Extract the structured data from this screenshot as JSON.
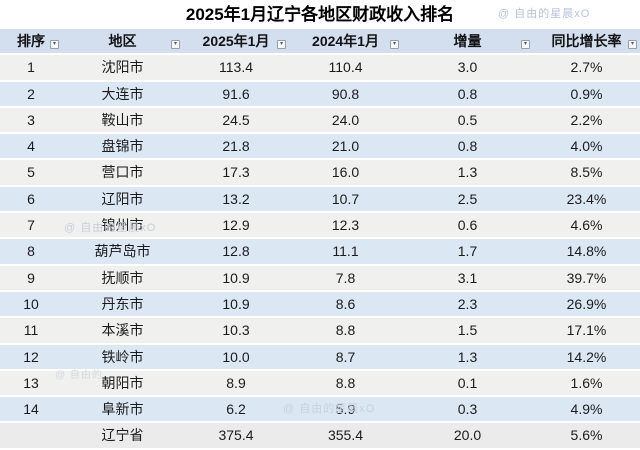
{
  "title": "2025年1月辽宁各地区财政收入排名",
  "watermarks": [
    {
      "text": "@ 自由的星晨xO",
      "location": "top-right"
    },
    {
      "text": "@ 自由的星晨xO",
      "location": "row-7-region"
    },
    {
      "text": "@ 自由的",
      "location": "row-13-left"
    },
    {
      "text": "@ 自由的星晨xO",
      "location": "row-14-center"
    }
  ],
  "table": {
    "filter_icon": "▾",
    "row_keys": [
      "rank",
      "region",
      "v2025",
      "v2024",
      "delta",
      "growth"
    ],
    "columns": [
      {
        "key": "rank",
        "label": "排序"
      },
      {
        "key": "region",
        "label": "地区"
      },
      {
        "key": "v2025",
        "label": "2025年1月"
      },
      {
        "key": "v2024",
        "label": "2024年1月"
      },
      {
        "key": "delta",
        "label": "增量"
      },
      {
        "key": "growth",
        "label": "同比增长率"
      }
    ],
    "rows": [
      {
        "rank": "1",
        "region": "沈阳市",
        "v2025": "113.4",
        "v2024": "110.4",
        "delta": "3.0",
        "growth": "2.7%"
      },
      {
        "rank": "2",
        "region": "大连市",
        "v2025": "91.6",
        "v2024": "90.8",
        "delta": "0.8",
        "growth": "0.9%"
      },
      {
        "rank": "3",
        "region": "鞍山市",
        "v2025": "24.5",
        "v2024": "24.0",
        "delta": "0.5",
        "growth": "2.2%"
      },
      {
        "rank": "4",
        "region": "盘锦市",
        "v2025": "21.8",
        "v2024": "21.0",
        "delta": "0.8",
        "growth": "4.0%"
      },
      {
        "rank": "5",
        "region": "营口市",
        "v2025": "17.3",
        "v2024": "16.0",
        "delta": "1.3",
        "growth": "8.5%"
      },
      {
        "rank": "6",
        "region": "辽阳市",
        "v2025": "13.2",
        "v2024": "10.7",
        "delta": "2.5",
        "growth": "23.4%"
      },
      {
        "rank": "7",
        "region": "锦州市",
        "v2025": "12.9",
        "v2024": "12.3",
        "delta": "0.6",
        "growth": "4.6%"
      },
      {
        "rank": "8",
        "region": "葫芦岛市",
        "v2025": "12.8",
        "v2024": "11.1",
        "delta": "1.7",
        "growth": "14.8%"
      },
      {
        "rank": "9",
        "region": "抚顺市",
        "v2025": "10.9",
        "v2024": "7.8",
        "delta": "3.1",
        "growth": "39.7%"
      },
      {
        "rank": "10",
        "region": "丹东市",
        "v2025": "10.9",
        "v2024": "8.6",
        "delta": "2.3",
        "growth": "26.9%"
      },
      {
        "rank": "11",
        "region": "本溪市",
        "v2025": "10.3",
        "v2024": "8.8",
        "delta": "1.5",
        "growth": "17.1%"
      },
      {
        "rank": "12",
        "region": "铁岭市",
        "v2025": "10.0",
        "v2024": "8.7",
        "delta": "1.3",
        "growth": "14.2%"
      },
      {
        "rank": "13",
        "region": "朝阳市",
        "v2025": "8.9",
        "v2024": "8.8",
        "delta": "0.1",
        "growth": "1.6%"
      },
      {
        "rank": "14",
        "region": "阜新市",
        "v2025": "6.2",
        "v2024": "5.9",
        "delta": "0.3",
        "growth": "4.9%"
      }
    ],
    "total": {
      "rank": "",
      "region": "辽宁省",
      "v2025": "375.4",
      "v2024": "355.4",
      "delta": "20.0",
      "growth": "5.6%"
    }
  },
  "colors": {
    "header_bg": "#d3deee",
    "row_odd_bg": "#f0f0ef",
    "row_even_bg": "#dce7f4",
    "total_row_bg": "#ebebec",
    "text": "#1b1b1b",
    "title_text": "#000000",
    "watermark_top": "#b7c3d6",
    "watermark_faint": "#ccd3dc"
  }
}
